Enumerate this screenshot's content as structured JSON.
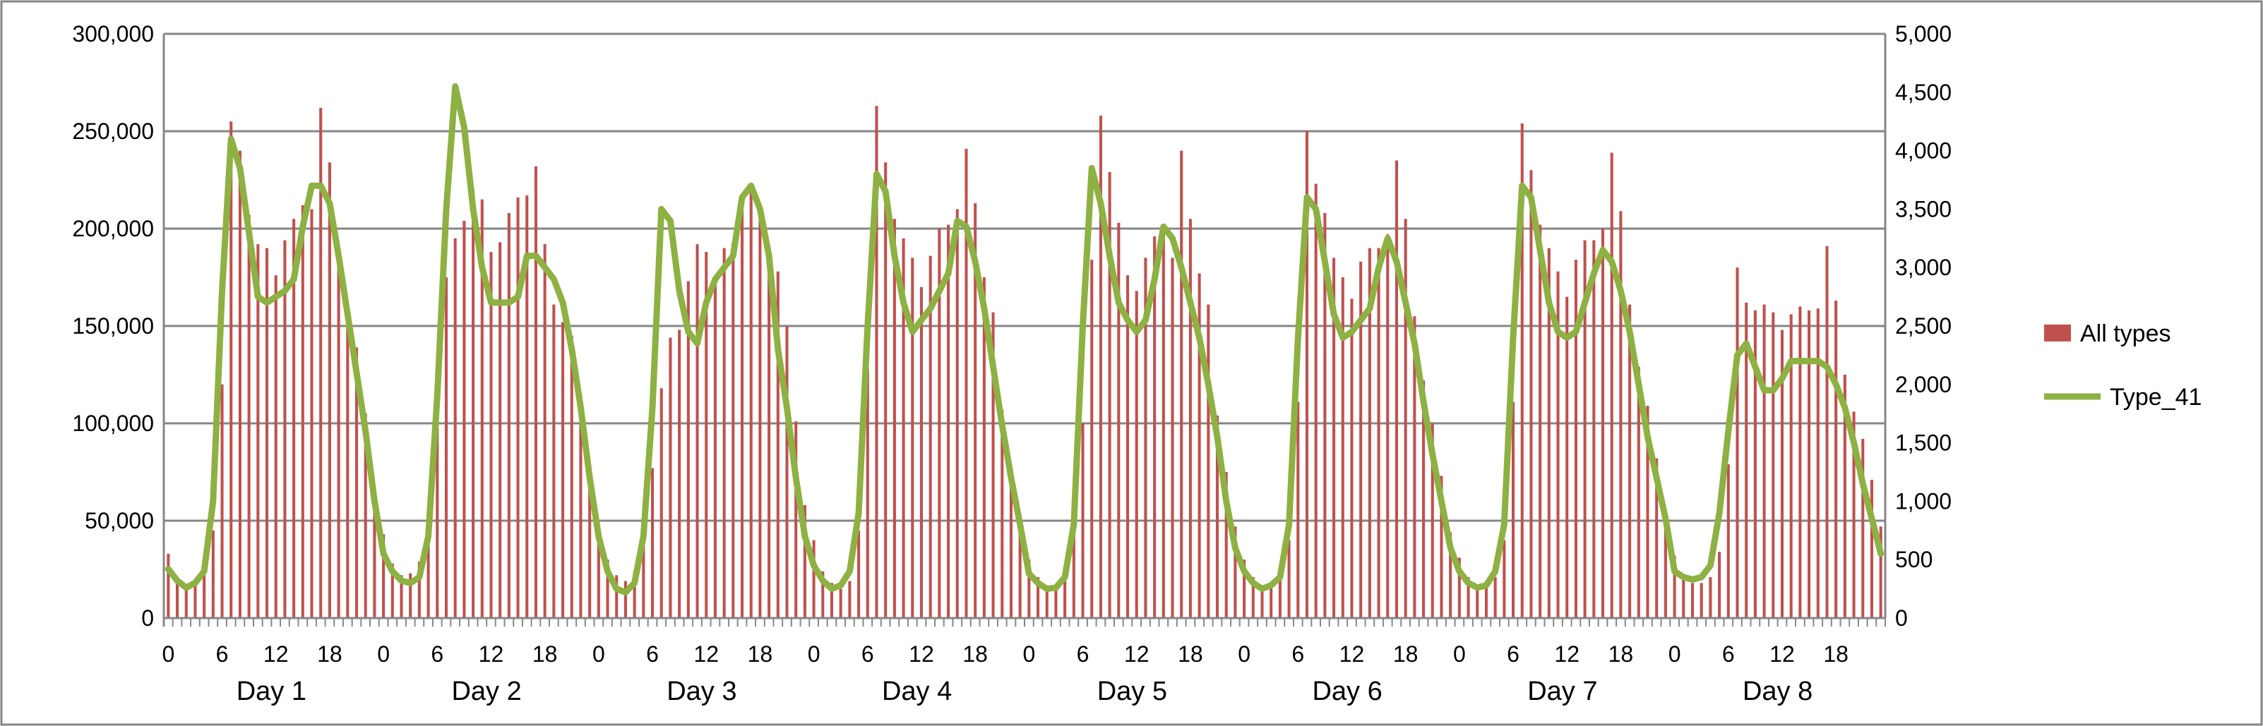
{
  "colors": {
    "bar": "#c0504d",
    "line": "#8db142",
    "grid": "#868686",
    "frame": "#868686"
  },
  "chart_data": {
    "type": "bar",
    "grid": true,
    "legend_position": "right",
    "y_left": {
      "range": [
        0,
        300000
      ],
      "ticks": [
        "0",
        "50,000",
        "100,000",
        "150,000",
        "200,000",
        "250,000",
        "300,000"
      ]
    },
    "y_right": {
      "range": [
        0,
        5000
      ],
      "ticks": [
        "0",
        "500",
        "1,000",
        "1,500",
        "2,000",
        "2,500",
        "3,000",
        "3,500",
        "4,000",
        "4,500",
        "5,000"
      ]
    },
    "hour_ticks": [
      "0",
      "6",
      "12",
      "18"
    ],
    "days": [
      "Day 1",
      "Day 2",
      "Day 3",
      "Day 4",
      "Day 5",
      "Day 6",
      "Day 7",
      "Day 8"
    ],
    "series": [
      {
        "name": "All types",
        "type": "bar",
        "axis": "left",
        "values": [
          33000,
          20000,
          17000,
          18000,
          22000,
          45000,
          120000,
          255000,
          240000,
          207000,
          192000,
          190000,
          176000,
          194000,
          205000,
          212000,
          210000,
          262000,
          234000,
          186000,
          157000,
          139000,
          105000,
          64000,
          43000,
          28000,
          22000,
          23000,
          29000,
          55000,
          103000,
          175000,
          195000,
          204000,
          220000,
          215000,
          188000,
          193000,
          208000,
          216000,
          217000,
          232000,
          192000,
          161000,
          152000,
          145000,
          115000,
          72000,
          47000,
          30000,
          22000,
          19000,
          24000,
          44000,
          77000,
          118000,
          144000,
          148000,
          173000,
          192000,
          188000,
          171000,
          190000,
          193000,
          218000,
          220000,
          210000,
          183000,
          178000,
          150000,
          101000,
          58000,
          40000,
          24000,
          18000,
          15000,
          19000,
          45000,
          128000,
          263000,
          234000,
          205000,
          195000,
          185000,
          170000,
          186000,
          200000,
          202000,
          210000,
          241000,
          213000,
          175000,
          157000,
          107000,
          78000,
          44000,
          30000,
          21000,
          16000,
          17000,
          22000,
          45000,
          100000,
          184000,
          258000,
          229000,
          203000,
          176000,
          168000,
          185000,
          196000,
          196000,
          185000,
          240000,
          205000,
          177000,
          161000,
          104000,
          75000,
          47000,
          30000,
          21000,
          16000,
          16000,
          21000,
          40000,
          111000,
          250000,
          223000,
          208000,
          185000,
          175000,
          164000,
          183000,
          190000,
          190000,
          197000,
          235000,
          205000,
          155000,
          122000,
          100000,
          73000,
          44000,
          31000,
          21000,
          16000,
          17000,
          21000,
          40000,
          111000,
          254000,
          230000,
          202000,
          190000,
          178000,
          165000,
          184000,
          194000,
          194000,
          200000,
          239000,
          209000,
          161000,
          129000,
          109000,
          82000,
          50000,
          32000,
          22000,
          18000,
          18000,
          21000,
          34000,
          79000,
          180000,
          162000,
          158000,
          161000,
          157000,
          148000,
          156000,
          160000,
          158000,
          159000,
          191000,
          163000,
          125000,
          106000,
          92000,
          71000,
          47000
        ]
      },
      {
        "name": "Type_41",
        "type": "line",
        "axis": "right",
        "values": [
          420,
          320,
          260,
          300,
          400,
          1000,
          2800,
          4100,
          3850,
          3300,
          2750,
          2700,
          2750,
          2800,
          2900,
          3350,
          3700,
          3700,
          3550,
          3100,
          2600,
          2100,
          1600,
          1000,
          550,
          400,
          320,
          300,
          350,
          700,
          1900,
          3500,
          4550,
          4200,
          3500,
          3000,
          2700,
          2700,
          2700,
          2750,
          3100,
          3100,
          3000,
          2900,
          2700,
          2300,
          1800,
          1200,
          700,
          400,
          250,
          220,
          300,
          700,
          1800,
          3500,
          3400,
          2800,
          2450,
          2350,
          2700,
          2900,
          3000,
          3100,
          3600,
          3700,
          3500,
          3100,
          2300,
          1800,
          1200,
          700,
          450,
          320,
          250,
          280,
          400,
          900,
          2500,
          3800,
          3650,
          3100,
          2700,
          2450,
          2550,
          2650,
          2800,
          2950,
          3400,
          3350,
          3050,
          2650,
          2150,
          1650,
          1200,
          800,
          380,
          300,
          250,
          260,
          350,
          800,
          2500,
          3850,
          3550,
          3100,
          2700,
          2550,
          2450,
          2550,
          2900,
          3350,
          3250,
          3000,
          2700,
          2400,
          2000,
          1550,
          1000,
          600,
          400,
          300,
          250,
          280,
          350,
          800,
          2400,
          3600,
          3500,
          3050,
          2600,
          2400,
          2450,
          2550,
          2650,
          3000,
          3250,
          3050,
          2700,
          2350,
          1850,
          1400,
          1000,
          600,
          400,
          300,
          260,
          280,
          400,
          800,
          2400,
          3700,
          3600,
          3150,
          2700,
          2450,
          2400,
          2450,
          2700,
          2950,
          3150,
          3050,
          2800,
          2450,
          2000,
          1550,
          1200,
          850,
          400,
          350,
          330,
          350,
          450,
          900,
          1600,
          2250,
          2350,
          2150,
          1950,
          1950,
          2050,
          2200,
          2200,
          2200,
          2200,
          2150,
          2000,
          1800,
          1500,
          1150,
          850,
          550
        ]
      }
    ]
  }
}
